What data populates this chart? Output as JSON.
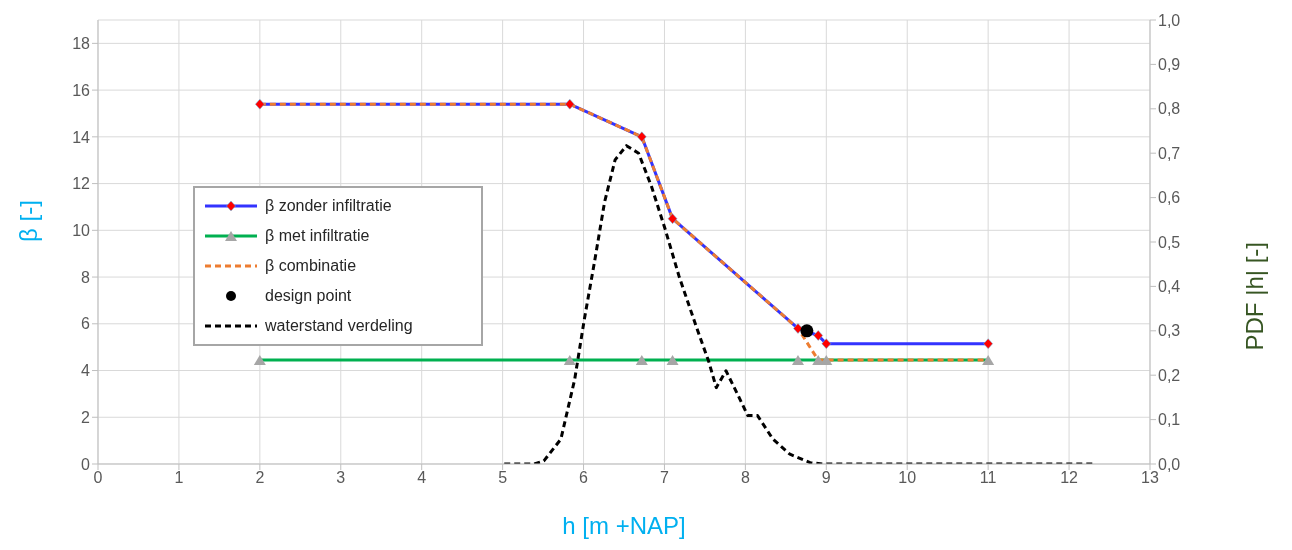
{
  "chart_data": {
    "type": "line",
    "xlabel": "h [m +NAP]",
    "ylabel": "β [-]",
    "y2label": "PDF |h| [-]",
    "xlim": [
      0,
      13
    ],
    "xticks": [
      0,
      1,
      2,
      3,
      4,
      5,
      6,
      7,
      8,
      9,
      10,
      11,
      12,
      13
    ],
    "ylim": [
      0,
      19
    ],
    "yticks": [
      0,
      2,
      4,
      6,
      8,
      10,
      12,
      14,
      16,
      18
    ],
    "y2lim": [
      0,
      1
    ],
    "y2ticks": [
      {
        "value": 0,
        "label": "0,0"
      },
      {
        "value": 0.1,
        "label": "0,1"
      },
      {
        "value": 0.2,
        "label": "0,2"
      },
      {
        "value": 0.3,
        "label": "0,3"
      },
      {
        "value": 0.4,
        "label": "0,4"
      },
      {
        "value": 0.5,
        "label": "0,5"
      },
      {
        "value": 0.6,
        "label": "0,6"
      },
      {
        "value": 0.7,
        "label": "0,7"
      },
      {
        "value": 0.8,
        "label": "0,8"
      },
      {
        "value": 0.9,
        "label": "0,9"
      },
      {
        "value": 1,
        "label": "1,0"
      }
    ],
    "grid": true,
    "legend": "left",
    "series": [
      {
        "name": "β zonder infiltratie",
        "color": "#3333ff",
        "marker": "diamond",
        "line_style": "solid",
        "x": [
          2,
          5.83,
          6.72,
          7.1,
          8.65,
          8.9,
          9.0,
          11
        ],
        "values": [
          15.4,
          15.4,
          14.0,
          10.5,
          5.8,
          5.5,
          5.15,
          5.15
        ]
      },
      {
        "name": "β met infiltratie",
        "color": "#00b050",
        "marker": "triangle",
        "line_style": "solid",
        "x": [
          2,
          5.83,
          6.72,
          7.1,
          8.65,
          8.9,
          9.0,
          11
        ],
        "values": [
          4.45,
          4.45,
          4.45,
          4.45,
          4.45,
          4.45,
          4.45,
          4.45
        ]
      },
      {
        "name": "β combinatie",
        "color": "#ed7d31",
        "marker": "none",
        "line_style": "dashed",
        "x": [
          2,
          5.83,
          6.72,
          7.1,
          8.65,
          8.9,
          9.0,
          11
        ],
        "values": [
          15.4,
          15.4,
          14.0,
          10.5,
          5.8,
          4.45,
          4.45,
          4.45
        ]
      },
      {
        "name": "design point",
        "type": "scatter",
        "color": "#000000",
        "marker": "circle",
        "x": [
          8.76
        ],
        "values": [
          5.7
        ]
      },
      {
        "name": "waterstand verdeling",
        "color": "#000000",
        "marker": "none",
        "line_style": "dashed",
        "axis": "y2",
        "x": [
          5.02,
          5.39,
          5.51,
          5.72,
          5.89,
          6.01,
          6.14,
          6.26,
          6.39,
          6.53,
          6.68,
          6.84,
          7.01,
          7.18,
          7.39,
          7.55,
          7.64,
          7.76,
          7.89,
          8.03,
          8.15,
          8.34,
          8.55,
          8.8,
          8.95,
          12.31
        ],
        "values": [
          0,
          0,
          0.007,
          0.056,
          0.19,
          0.326,
          0.46,
          0.59,
          0.685,
          0.717,
          0.7,
          0.625,
          0.528,
          0.423,
          0.311,
          0.229,
          0.172,
          0.21,
          0.162,
          0.109,
          0.109,
          0.056,
          0.022,
          0.003,
          0,
          0
        ]
      }
    ]
  }
}
